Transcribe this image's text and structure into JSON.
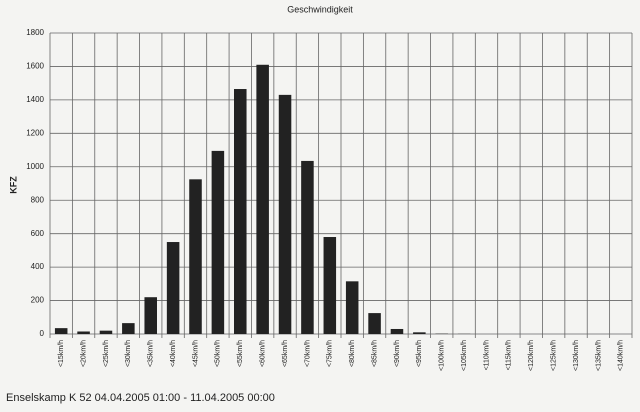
{
  "chart_data": {
    "type": "bar",
    "title": "Geschwindigkeit",
    "y_label": "KFZ",
    "footer": "Enselskamp K 52 04.04.2005 01:00 - 11.04.2005 00:00",
    "categories": [
      "<15km/h",
      "<20km/h",
      "<25km/h",
      "<30km/h",
      "<35km/h",
      "<40km/h",
      "<45km/h",
      "<50km/h",
      "<55km/h",
      "<60km/h",
      "<65km/h",
      "<70km/h",
      "<75km/h",
      "<80km/h",
      "<85km/h",
      "<90km/h",
      "<95km/h",
      "<100km/h",
      "<105km/h",
      "<110km/h",
      "<115km/h",
      "<120km/h",
      "<125km/h",
      "<130km/h",
      "<135km/h",
      "<140km/h"
    ],
    "values": [
      35,
      15,
      20,
      65,
      220,
      550,
      925,
      1095,
      1465,
      1610,
      1430,
      1035,
      580,
      315,
      125,
      30,
      10,
      2,
      1,
      0,
      0,
      0,
      0,
      0,
      0,
      0
    ],
    "color": "#222222",
    "ylim": [
      0,
      1800
    ],
    "yticks": [
      0,
      200,
      400,
      600,
      800,
      1000,
      1200,
      1400,
      1600,
      1800
    ],
    "grid": true
  }
}
